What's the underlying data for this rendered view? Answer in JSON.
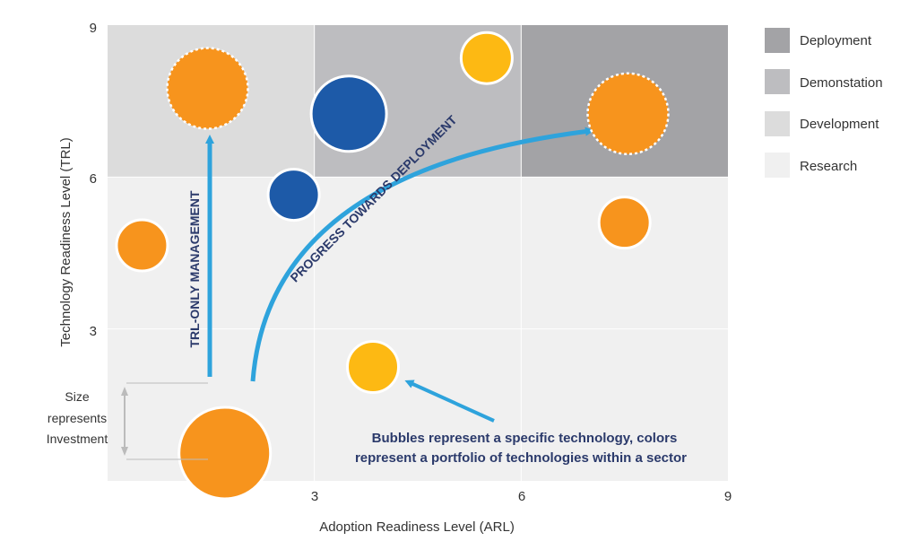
{
  "chart_data": {
    "type": "scatter",
    "xlabel": "Adoption Readiness Level (ARL)",
    "ylabel": "Technology Readiness Level (TRL)",
    "xlim": [
      0,
      9
    ],
    "ylim": [
      0,
      9
    ],
    "x_ticks": [
      "3",
      "6",
      "9"
    ],
    "y_ticks": [
      "3",
      "6",
      "9"
    ],
    "legend_placement": "right",
    "legend": [
      {
        "label": "Deployment",
        "color": "#a3a3a6"
      },
      {
        "label": "Demonstation",
        "color": "#bdbdc0"
      },
      {
        "label": "Development",
        "color": "#dcdcdc"
      },
      {
        "label": "Research",
        "color": "#f0f0f0"
      }
    ],
    "zones": [
      {
        "legend": "Development",
        "x": [
          0,
          3
        ],
        "y": [
          6,
          9
        ]
      },
      {
        "legend": "Demonstation",
        "x": [
          3,
          6
        ],
        "y": [
          6,
          9
        ]
      },
      {
        "legend": "Deployment",
        "x": [
          6,
          9
        ],
        "y": [
          6,
          9
        ]
      },
      {
        "legend": "Research",
        "x": [
          0,
          9
        ],
        "y": [
          0,
          6
        ]
      }
    ],
    "bubbles": [
      {
        "x": 1.45,
        "y": 7.75,
        "size": 3.0,
        "color": "#f7941d",
        "dashed_border": true
      },
      {
        "x": 3.5,
        "y": 7.25,
        "size": 2.8,
        "color": "#1d5aa8",
        "dashed_border": false
      },
      {
        "x": 5.5,
        "y": 8.35,
        "size": 1.9,
        "color": "#fdb913",
        "dashed_border": false
      },
      {
        "x": 7.55,
        "y": 7.25,
        "size": 3.0,
        "color": "#f7941d",
        "dashed_border": true
      },
      {
        "x": 2.7,
        "y": 5.65,
        "size": 1.9,
        "color": "#1d5aa8",
        "dashed_border": false
      },
      {
        "x": 0.5,
        "y": 4.65,
        "size": 1.9,
        "color": "#f7941d",
        "dashed_border": false
      },
      {
        "x": 7.5,
        "y": 5.1,
        "size": 1.9,
        "color": "#f7941d",
        "dashed_border": false
      },
      {
        "x": 3.85,
        "y": 2.25,
        "size": 1.9,
        "color": "#fdb913",
        "dashed_border": false
      },
      {
        "x": 1.7,
        "y": 0.55,
        "size": 3.4,
        "color": "#f7941d",
        "dashed_border": false
      }
    ],
    "annotations": {
      "trl_only": "TRL-ONLY MANAGEMENT",
      "progress": "PROGRESS TOWARDS DEPLOYMENT",
      "bubbles_line1": "Bubbles represent a specific technology, colors",
      "bubbles_line2": "represent a portfolio of technologies within a sector",
      "size_line1": "Size",
      "size_line2": "represents",
      "size_line3": "Investment"
    },
    "colors": {
      "arrow": "#2ea3dc",
      "annotation_text": "#2b3a6b",
      "size_bracket": "#bbbbbb"
    }
  }
}
